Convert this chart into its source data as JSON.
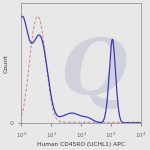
{
  "title": "",
  "xlabel": "Human CD45RO (UCHL1) APC",
  "ylabel": "Count",
  "background_color": "#e8e8e8",
  "plot_bg_color": "#e8e8e8",
  "solid_color": "#3333bb",
  "dashed_color": "#cc7777",
  "watermark_text": "Q",
  "watermark_color": "#c8c8d8",
  "watermark_alpha": 0.7,
  "solid_lw": 0.9,
  "dashed_lw": 0.7
}
